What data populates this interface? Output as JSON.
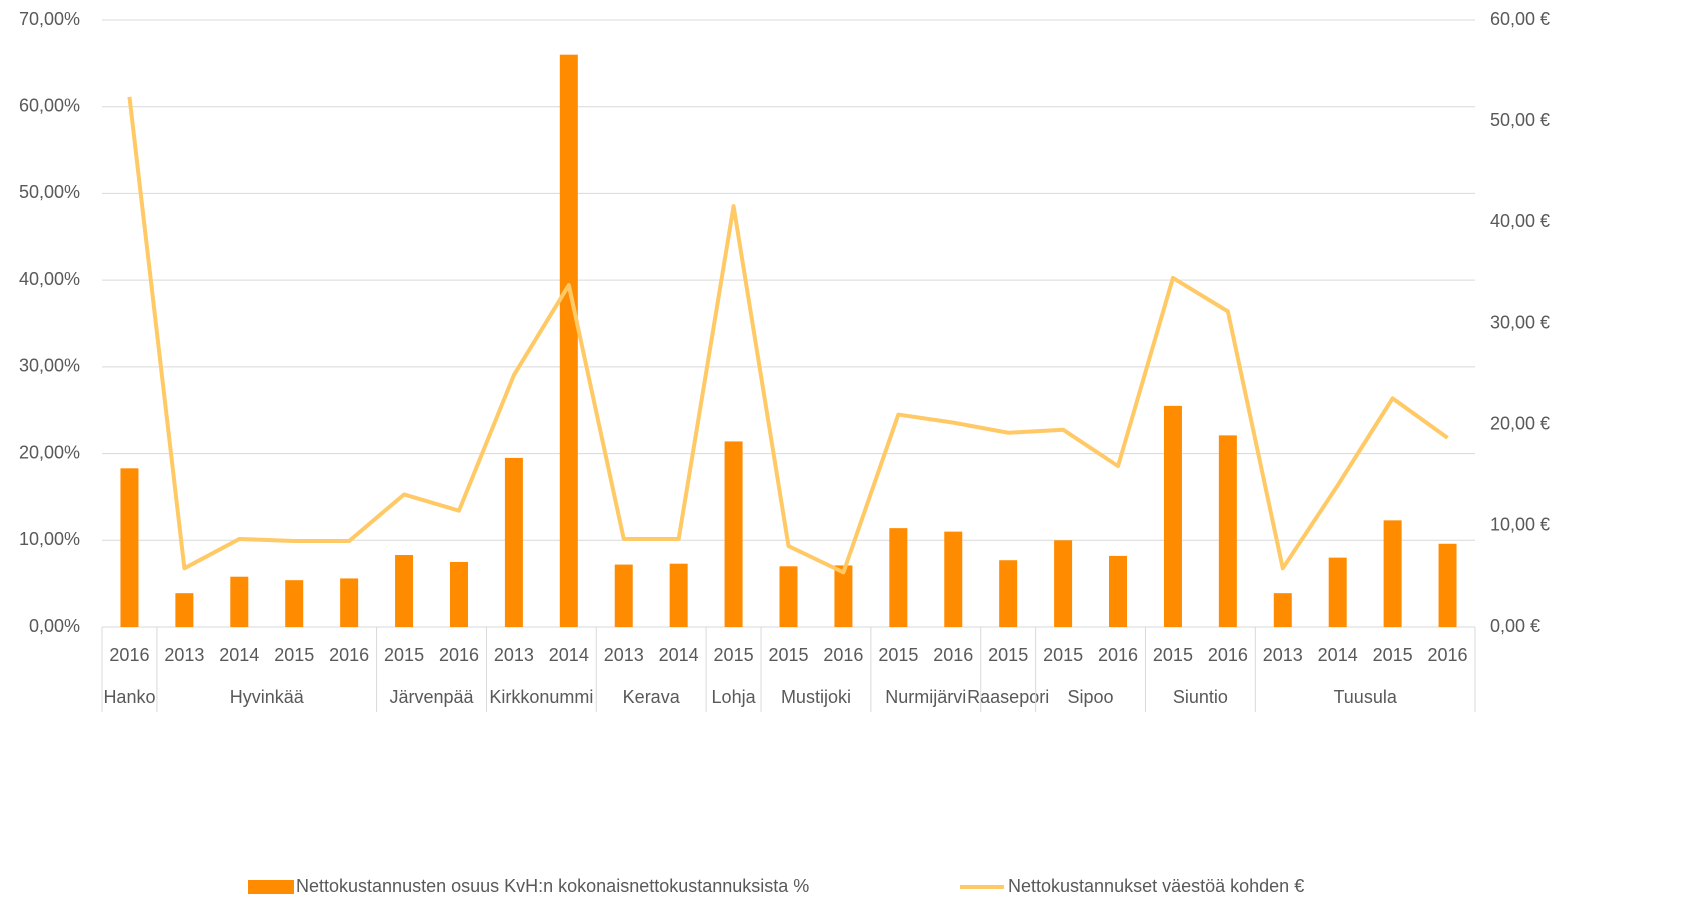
{
  "chart_data": {
    "type": "bar-line",
    "categories": [
      "2016",
      "2013",
      "2014",
      "2015",
      "2016",
      "2015",
      "2016",
      "2013",
      "2014",
      "2013",
      "2014",
      "2015",
      "2015",
      "2016",
      "2015",
      "2016",
      "2015",
      "2015",
      "2016",
      "2015",
      "2016",
      "2013",
      "2014",
      "2015",
      "2016"
    ],
    "groups": [
      "Hanko",
      "Hyvinkää",
      null,
      null,
      null,
      "Järvenpää",
      null,
      "Kirkkonummi",
      null,
      "Kerava",
      null,
      "Lohja",
      "Mustijoki",
      null,
      "Nurmijärvi",
      null,
      "Raasepori",
      "Sipoo",
      null,
      "Siuntio",
      null,
      "Tuusula",
      null,
      null,
      null
    ],
    "series": [
      {
        "name": "Nettokustannusten osuus KvH:n kokonaisnettokustannuksista %",
        "type": "bar",
        "color": "#ff8c00",
        "values": [
          18.3,
          3.9,
          5.8,
          5.4,
          5.6,
          8.3,
          7.5,
          19.5,
          66.0,
          7.2,
          7.3,
          21.4,
          7.0,
          7.1,
          11.4,
          11.0,
          7.7,
          10.0,
          8.2,
          25.5,
          22.1,
          3.9,
          8.0,
          12.3,
          9.6
        ]
      },
      {
        "name": "Nettokustannukset väestöä kohden €",
        "type": "line",
        "axis": "y2",
        "color": "#ffc966",
        "values": [
          52.4,
          5.8,
          8.7,
          8.5,
          8.5,
          13.1,
          11.5,
          24.9,
          33.8,
          8.7,
          8.7,
          41.6,
          8.0,
          5.4,
          21.0,
          20.2,
          19.2,
          19.5,
          15.9,
          34.5,
          31.2,
          5.8,
          14.0,
          22.6,
          18.7
        ]
      }
    ],
    "ylim": [
      0,
      70
    ],
    "yticks": [
      {
        "value": 0,
        "label": "0,00%"
      },
      {
        "value": 10,
        "label": "10,00%"
      },
      {
        "value": 20,
        "label": "20,00%"
      },
      {
        "value": 30,
        "label": "30,00%"
      },
      {
        "value": 40,
        "label": "40,00%"
      },
      {
        "value": 50,
        "label": "50,00%"
      },
      {
        "value": 60,
        "label": "60,00%"
      },
      {
        "value": 70,
        "label": "70,00%"
      }
    ],
    "y2lim": [
      0,
      60
    ],
    "y2ticks": [
      {
        "value": 0,
        "label": "0,00 €"
      },
      {
        "value": 10,
        "label": "10,00 €"
      },
      {
        "value": 20,
        "label": "20,00 €"
      },
      {
        "value": 30,
        "label": "30,00 €"
      },
      {
        "value": 40,
        "label": "40,00 €"
      },
      {
        "value": 50,
        "label": "50,00 €"
      },
      {
        "value": 60,
        "label": "60,00 €"
      }
    ],
    "grid": true,
    "legend": "bottom"
  }
}
